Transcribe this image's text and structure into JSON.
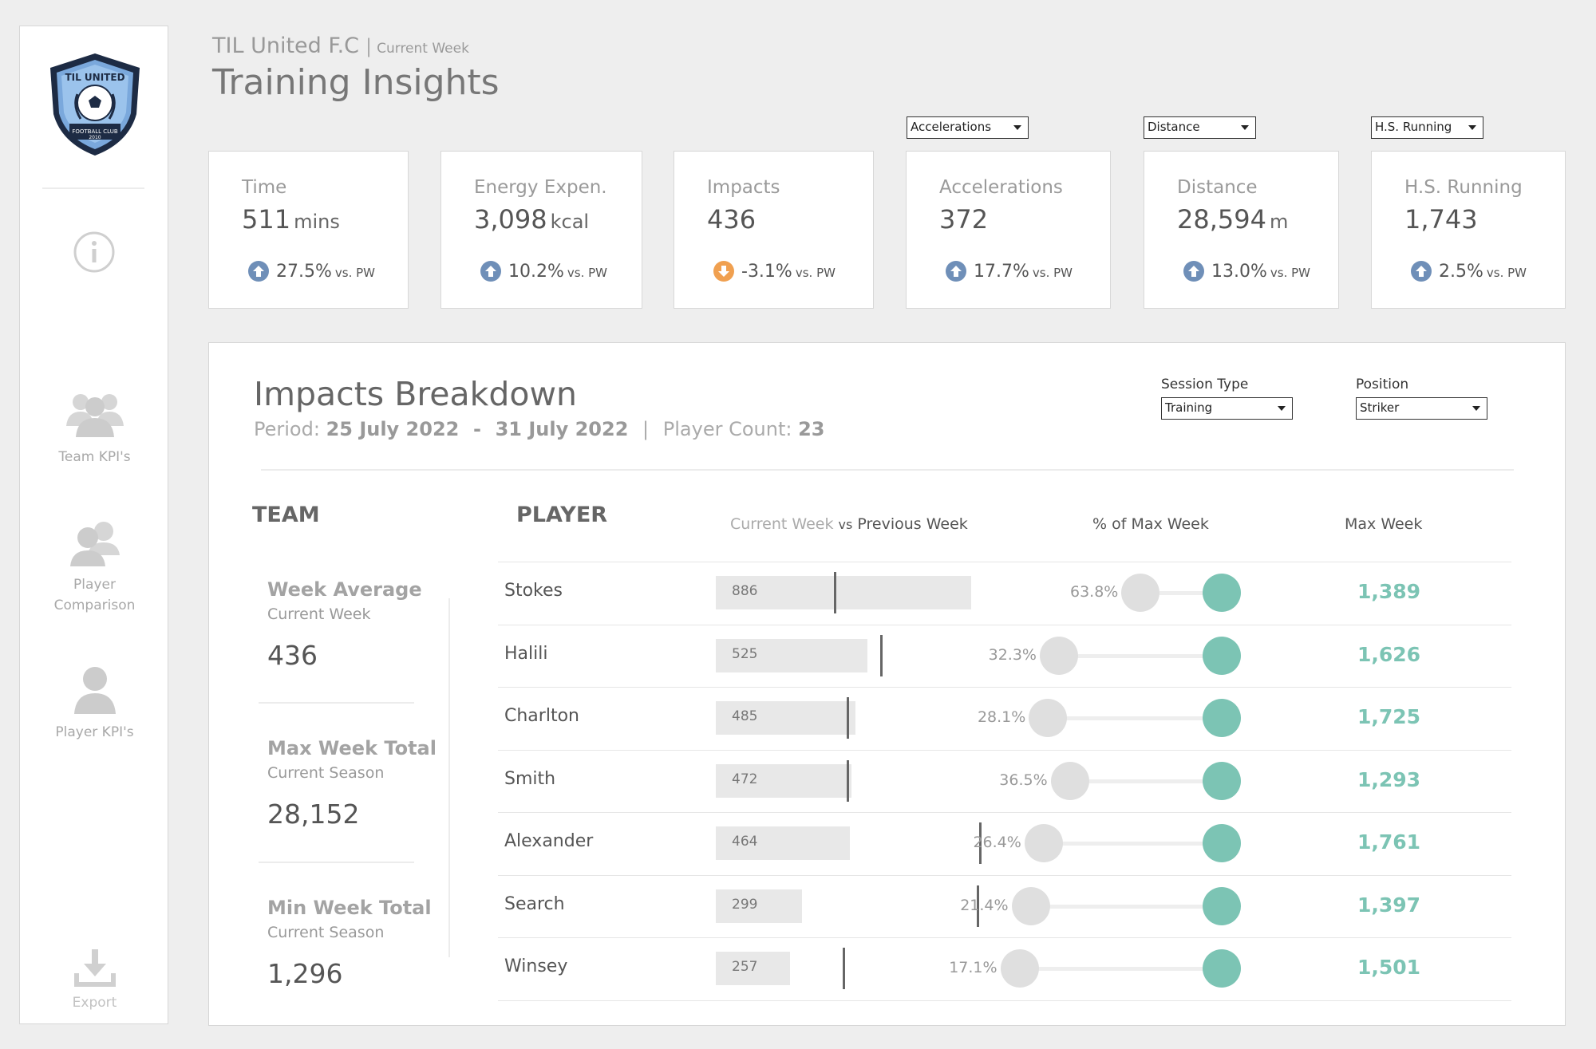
{
  "brand": {
    "club": "TIL United F.C",
    "separator": "|",
    "week_label": "Current Week",
    "title": "Training Insights",
    "logo_text_top": "TIL UNITED",
    "logo_text_bottom": "FOOTBALL CLUB",
    "logo_year": "2010"
  },
  "sidebar": [
    {
      "id": "info",
      "label": ""
    },
    {
      "id": "team-kpis",
      "label": "Team KPI's"
    },
    {
      "id": "player-comparison",
      "label_lines": [
        "Player",
        "Comparison"
      ]
    },
    {
      "id": "player-kpis",
      "label": "Player KPI's"
    },
    {
      "id": "export",
      "label": "Export"
    }
  ],
  "kpi_filters": {
    "accelerations": "Accelerations",
    "distance": "Distance",
    "hs_running": "H.S. Running"
  },
  "kpis": [
    {
      "label": "Time",
      "value": "511",
      "unit": "mins",
      "delta": "27.5%",
      "vs": "vs. PW",
      "direction": "up"
    },
    {
      "label": "Energy Expen.",
      "value": "3,098",
      "unit": "kcal",
      "delta": "10.2%",
      "vs": "vs. PW",
      "direction": "up"
    },
    {
      "label": "Impacts",
      "value": "436",
      "unit": "",
      "delta": "-3.1%",
      "vs": "vs. PW",
      "direction": "down"
    },
    {
      "label": "Accelerations",
      "value": "372",
      "unit": "",
      "delta": "17.7%",
      "vs": "vs. PW",
      "direction": "up"
    },
    {
      "label": "Distance",
      "value": "28,594",
      "unit": "m",
      "delta": "13.0%",
      "vs": "vs. PW",
      "direction": "up"
    },
    {
      "label": "H.S. Running",
      "value": "1,743",
      "unit": "",
      "delta": "2.5%",
      "vs": "vs. PW",
      "direction": "up"
    }
  ],
  "colors": {
    "up": "#6f8fb8",
    "down": "#f0a050",
    "teal": "#7cc4b4",
    "grey_dot": "#dfdfdf"
  },
  "breakdown": {
    "title": "Impacts Breakdown",
    "period_label": "Period:",
    "period_start": "25 July 2022",
    "period_dash": "-",
    "period_end": "31 July 2022",
    "sep": "|",
    "count_label": "Player Count:",
    "count": "23",
    "filters": {
      "session_type_label": "Session Type",
      "session_type": "Training",
      "position_label": "Position",
      "position": "Striker"
    },
    "team_header": "TEAM",
    "player_header": "PLAYER",
    "col_current": "Current Week",
    "col_vs": "vs",
    "col_previous": "Previous Week",
    "col_pct": "% of Max Week",
    "col_max": "Max Week",
    "team": [
      {
        "label": "Week Average",
        "sub": "Current Week",
        "value": "436"
      },
      {
        "label": "Max Week Total",
        "sub": "Current Season",
        "value": "28,152"
      },
      {
        "label": "Min Week Total",
        "sub": "Current Season",
        "value": "1,296"
      }
    ]
  },
  "chart_data": {
    "type": "bar",
    "players": [
      "Stokes",
      "Halili",
      "Charlton",
      "Smith",
      "Alexander",
      "Search",
      "Winsey"
    ],
    "current_week": [
      886,
      525,
      485,
      472,
      464,
      299,
      257
    ],
    "previous_week_est": [
      410,
      570,
      455,
      455,
      915,
      905,
      440
    ],
    "pct_of_max_week": [
      63.8,
      32.3,
      28.1,
      36.5,
      26.4,
      21.4,
      17.1
    ],
    "pct_labels": [
      "63.8%",
      "32.3%",
      "28.1%",
      "36.5%",
      "26.4%",
      "21.4%",
      "17.1%"
    ],
    "max_week": [
      "1,389",
      "1,626",
      "1,725",
      "1,293",
      "1,761",
      "1,397",
      "1,501"
    ],
    "bar_max": 886
  }
}
